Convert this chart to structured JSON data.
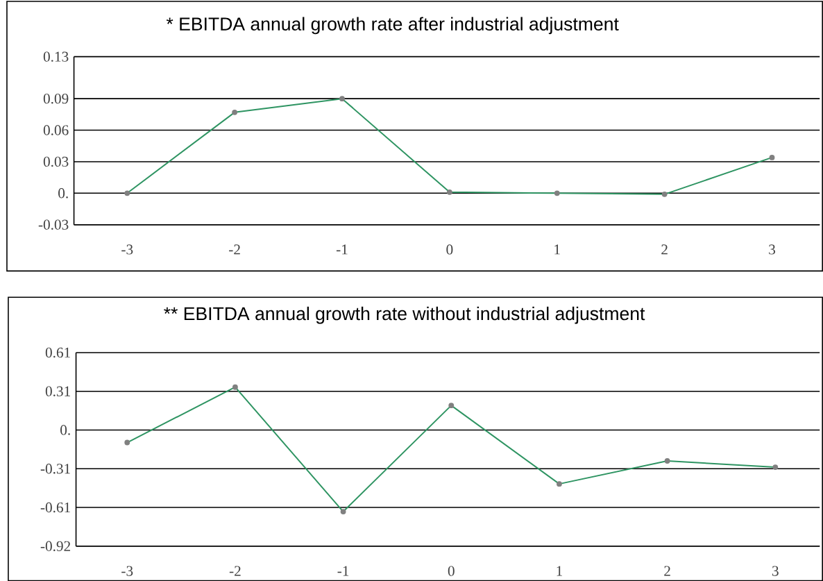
{
  "chart_data": [
    {
      "type": "line",
      "title": "* EBITDA annual growth rate after industrial adjustment",
      "categories": [
        "-3",
        "-2",
        "-1",
        "0",
        "1",
        "2",
        "3"
      ],
      "values": [
        0.0,
        0.077,
        0.09,
        0.001,
        0.0,
        -0.001,
        0.034
      ],
      "color": "#2e9462",
      "marker": "circle",
      "grid": "y",
      "ylim": [
        -0.03,
        0.13
      ],
      "yticks": [
        -0.03,
        {
          "value": 0,
          "label": "0."
        },
        0.03,
        0.06,
        0.09,
        0.13
      ]
    },
    {
      "type": "line",
      "title": "** EBITDA annual growth rate without industrial adjustment",
      "categories": [
        "-3",
        "-2",
        "-1",
        "0",
        "1",
        "2",
        "3"
      ],
      "values": [
        -0.099,
        0.339,
        -0.645,
        0.194,
        -0.426,
        -0.244,
        -0.294
      ],
      "color": "#2e9462",
      "marker": "circle",
      "grid": "y",
      "ylim": [
        -0.918,
        0.612
      ],
      "yticks": [
        {
          "value": -0.918,
          "label": "-0.92"
        },
        {
          "value": -0.612,
          "label": "-0.61"
        },
        {
          "value": -0.306,
          "label": "-0.31"
        },
        {
          "value": 0,
          "label": "0."
        },
        {
          "value": 0.306,
          "label": "0.31"
        },
        {
          "value": 0.612,
          "label": "0.61"
        }
      ]
    }
  ]
}
